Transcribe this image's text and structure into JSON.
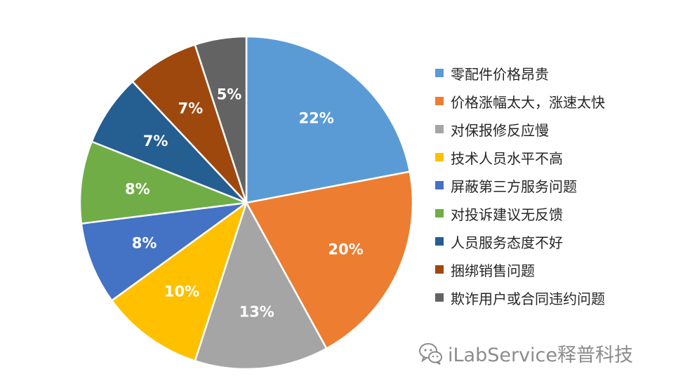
{
  "chart_data": {
    "type": "pie",
    "title": "",
    "start_angle_deg": 0,
    "direction": "clockwise",
    "slices": [
      {
        "label": "零配件价格昂贵",
        "value": 22,
        "display": "22%",
        "color": "#5b9bd5"
      },
      {
        "label": "价格涨幅太大，涨速太快",
        "value": 20,
        "display": "20%",
        "color": "#ed7d31"
      },
      {
        "label": "对保报修反应慢",
        "value": 13,
        "display": "13%",
        "color": "#a5a5a5"
      },
      {
        "label": "技术人员水平不高",
        "value": 10,
        "display": "10%",
        "color": "#ffc000"
      },
      {
        "label": "屏蔽第三方服务问题",
        "value": 8,
        "display": "8%",
        "color": "#4472c4"
      },
      {
        "label": "对投诉建议无反馈",
        "value": 8,
        "display": "8%",
        "color": "#70ad47"
      },
      {
        "label": "人员服务态度不好",
        "value": 7,
        "display": "7%",
        "color": "#255e91"
      },
      {
        "label": "捆绑销售问题",
        "value": 7,
        "display": "7%",
        "color": "#9e480e"
      },
      {
        "label": "欺诈用户或合同违约问题",
        "value": 5,
        "display": "5%",
        "color": "#636363"
      }
    ],
    "legend_position": "right"
  },
  "watermark": {
    "text": "iLabService释普科技",
    "icon": "wechat-icon"
  }
}
